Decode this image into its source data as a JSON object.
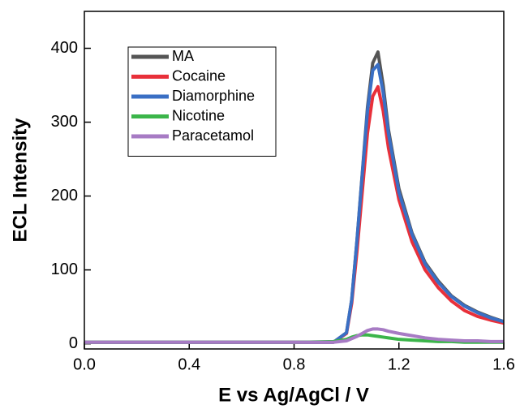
{
  "chart_data": {
    "type": "line",
    "x_label": "E vs Ag/AgCl / V",
    "y_label": "ECL Intensity",
    "x": [
      0,
      0.2,
      0.4,
      0.6,
      0.8,
      0.95,
      1.0,
      1.02,
      1.04,
      1.06,
      1.08,
      1.1,
      1.12,
      1.14,
      1.16,
      1.2,
      1.25,
      1.3,
      1.35,
      1.4,
      1.45,
      1.5,
      1.55,
      1.6
    ],
    "series": [
      {
        "name": "MA",
        "color": "#555555",
        "values": [
          2,
          2,
          2,
          2,
          2,
          2,
          15,
          60,
          140,
          230,
          320,
          380,
          395,
          350,
          290,
          210,
          150,
          110,
          85,
          65,
          52,
          43,
          36,
          30
        ]
      },
      {
        "name": "Cocaine",
        "color": "#e8303a",
        "values": [
          2,
          2,
          2,
          2,
          2,
          2,
          14,
          55,
          125,
          205,
          285,
          335,
          348,
          315,
          265,
          195,
          138,
          100,
          76,
          58,
          45,
          37,
          32,
          28
        ]
      },
      {
        "name": "Diamorphine",
        "color": "#3a6fc4",
        "values": [
          2,
          2,
          2,
          2,
          2,
          2,
          15,
          60,
          140,
          228,
          315,
          370,
          378,
          340,
          285,
          205,
          148,
          108,
          83,
          64,
          51,
          42,
          35,
          30
        ]
      },
      {
        "name": "Nicotine",
        "color": "#3bb54a",
        "values": [
          2,
          2,
          2,
          2,
          2,
          3,
          6,
          9,
          11,
          12,
          12,
          11,
          10,
          9,
          8,
          6,
          5,
          4,
          3,
          3,
          2,
          2,
          2,
          2
        ]
      },
      {
        "name": "Paracetamol",
        "color": "#a77bc4",
        "values": [
          2,
          2,
          2,
          2,
          2,
          2,
          4,
          7,
          10,
          14,
          18,
          20,
          20,
          19,
          17,
          14,
          11,
          8,
          6,
          5,
          4,
          4,
          3,
          3
        ]
      }
    ],
    "xlim": [
      0,
      1.6
    ],
    "xticks": [
      {
        "value": 0,
        "label": "0.0"
      },
      0.4,
      0.8,
      1.2,
      1.6
    ],
    "ylim": [
      -7,
      450
    ],
    "yticks": [
      0,
      100,
      200,
      300,
      400
    ],
    "legend": "upper-left"
  }
}
